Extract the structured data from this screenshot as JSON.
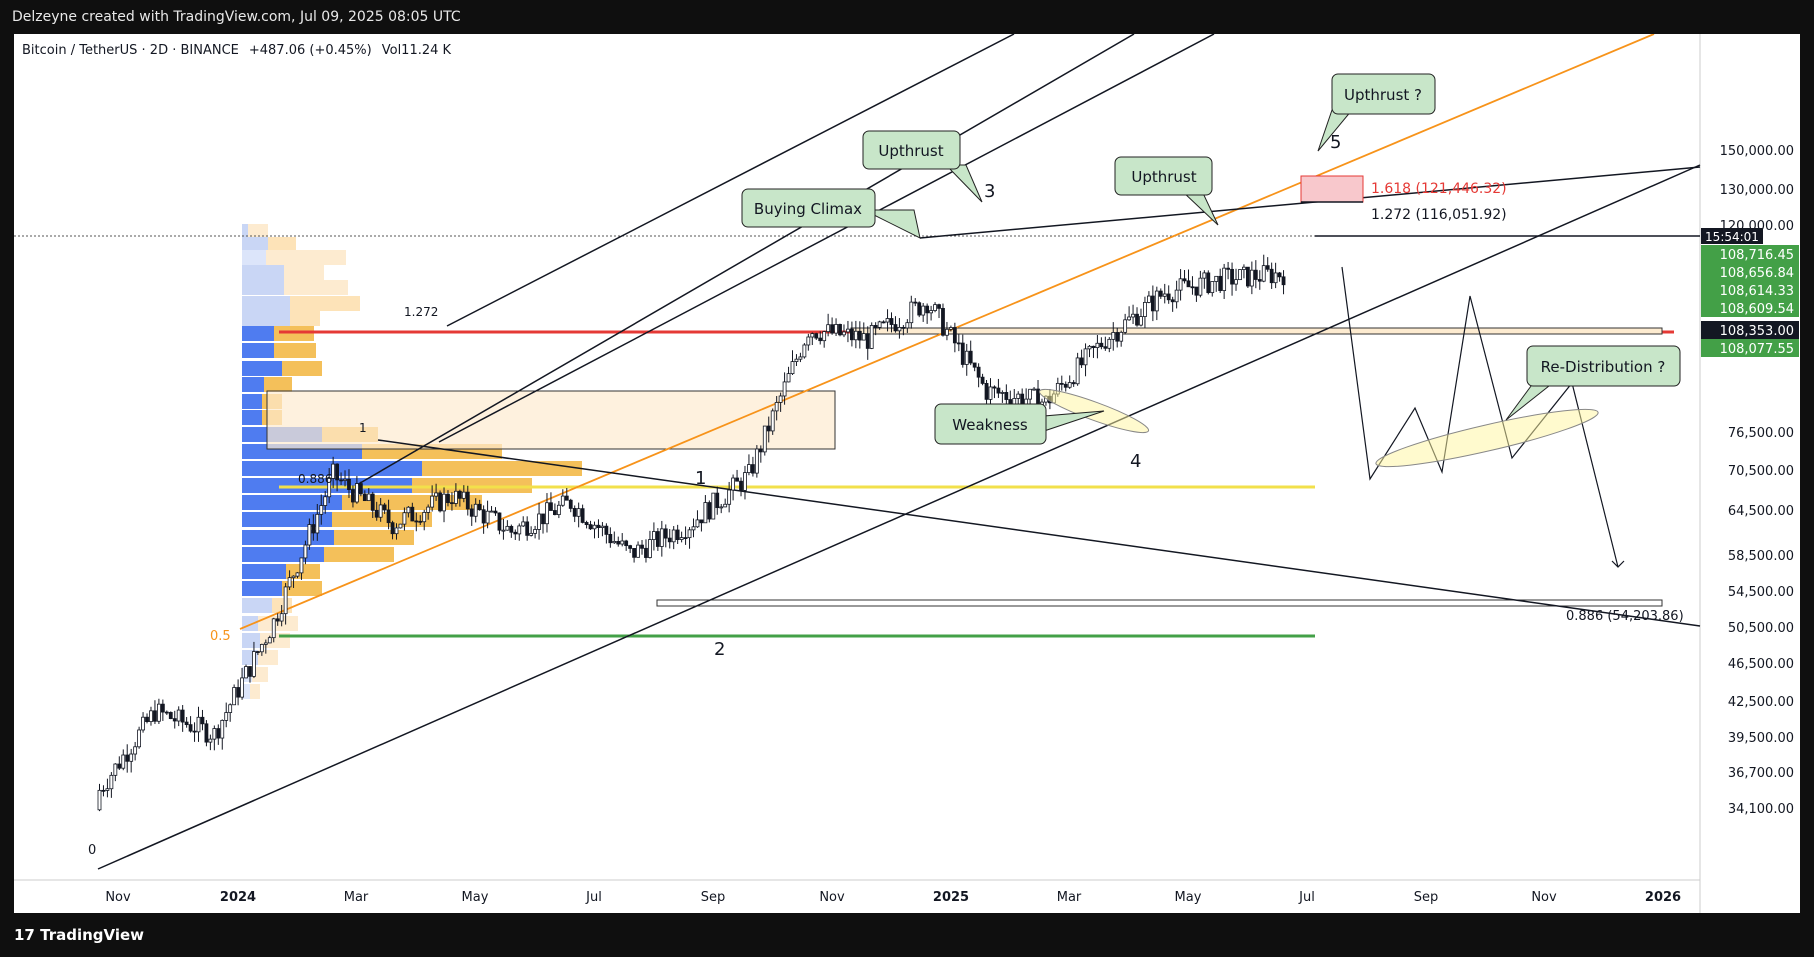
{
  "header": {
    "attribution": "Delzeyne created with TradingView.com, Jul 09, 2025 08:05 UTC"
  },
  "legend": {
    "symbol": "Bitcoin / TetherUS · 2D · BINANCE",
    "change": "+487.06 (+0.45%)",
    "volume": "Vol11.24 K"
  },
  "footer": {
    "brand": "TradingView"
  },
  "colors": {
    "orange": "#f7931a",
    "red": "#e53935",
    "green": "#43a047",
    "yellow": "#f2e04b",
    "blue": "#4f7cf0",
    "gold": "#f4c05a",
    "label_bg": "#c8e6c9"
  },
  "chart_data": {
    "type": "candlestick",
    "y_scale": "log",
    "x_ticks": [
      "Nov",
      "2024",
      "Mar",
      "May",
      "Jul",
      "Sep",
      "Nov",
      "2025",
      "Mar",
      "May",
      "Jul",
      "Sep",
      "Nov",
      "2026"
    ],
    "y_ticks": [
      "150,000.00",
      "130,000.00",
      "120,000.00",
      "108,716.45",
      "108,656.84",
      "108,614.33",
      "108,609.54",
      "108,353.00",
      "108,077.55",
      "76,500.00",
      "70,500.00",
      "64,500.00",
      "58,500.00",
      "54,500.00",
      "50,500.00",
      "46,500.00",
      "42,500.00",
      "39,500.00",
      "36,700.00",
      "34,100.00"
    ],
    "countdown": "15:54:01",
    "current_price": "108,353.00",
    "annotations": {
      "buying_climax": "Buying Climax",
      "upthrust_1": "Upthrust",
      "upthrust_2": "Upthrust",
      "upthrust_q": "Upthrust ?",
      "weakness": "Weakness",
      "redistribution": "Re-Distribution ?",
      "wave_1": "1",
      "wave_2": "2",
      "wave_3": "3",
      "wave_4": "4",
      "wave_5": "5",
      "fib_1272_left": "1.272",
      "fib_1_left": "1",
      "fib_0886_left": "0.886",
      "fib_05": "0.5",
      "fib_0": "0",
      "fib_1618": "1.618 (121,446.32)",
      "fib_1272": "1.272 (116,051.92)",
      "fib_0886_right": "0.886 (54,203.86)"
    },
    "price_series": [
      {
        "date": "2023-11",
        "close": 35000
      },
      {
        "date": "2023-12",
        "close": 42000
      },
      {
        "date": "2024-01",
        "close": 40000
      },
      {
        "date": "2024-02",
        "close": 51000
      },
      {
        "date": "2024-03",
        "close": 70000
      },
      {
        "date": "2024-04",
        "close": 63000
      },
      {
        "date": "2024-05",
        "close": 67000
      },
      {
        "date": "2024-06",
        "close": 62000
      },
      {
        "date": "2024-07",
        "close": 66000
      },
      {
        "date": "2024-08",
        "close": 59000
      },
      {
        "date": "2024-09",
        "close": 63000
      },
      {
        "date": "2024-10",
        "close": 70000
      },
      {
        "date": "2024-11",
        "close": 96000
      },
      {
        "date": "2024-12",
        "close": 94000
      },
      {
        "date": "2025-01",
        "close": 102000
      },
      {
        "date": "2025-02",
        "close": 84000
      },
      {
        "date": "2025-03",
        "close": 82000
      },
      {
        "date": "2025-04",
        "close": 94000
      },
      {
        "date": "2025-05",
        "close": 104000
      },
      {
        "date": "2025-06",
        "close": 107000
      },
      {
        "date": "2025-07",
        "close": 108353
      }
    ]
  }
}
